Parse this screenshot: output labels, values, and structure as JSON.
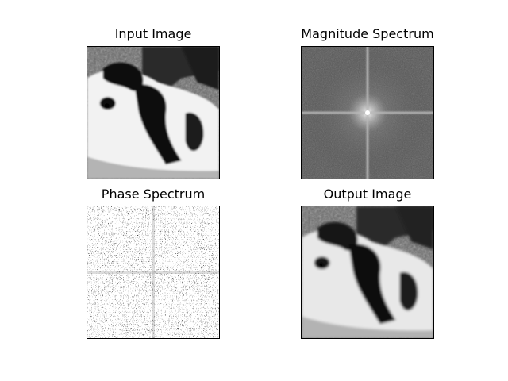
{
  "panels": [
    {
      "title": "Input Image",
      "icon": "dog-photo"
    },
    {
      "title": "Magnitude Spectrum",
      "icon": "fft-magnitude"
    },
    {
      "title": "Phase Spectrum",
      "icon": "fft-phase"
    },
    {
      "title": "Output Image",
      "icon": "dog-photo-reconstructed"
    }
  ],
  "colors": {
    "background": "#ffffff",
    "frame": "#000000",
    "spectrum_gray": "#555555"
  }
}
